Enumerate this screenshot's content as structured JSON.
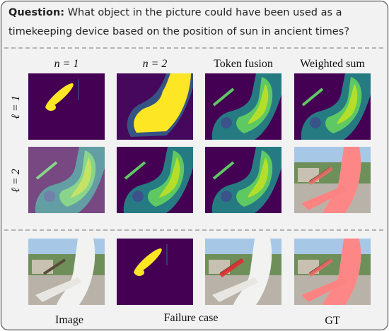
{
  "question": {
    "label": "Question:",
    "text_line1": "What object in the picture could have been used as a",
    "text_line2": "timekeeping device based on the position of sun in ancient times?"
  },
  "columns": [
    "n = 1",
    "n = 2",
    "Token fusion",
    "Weighted sum"
  ],
  "rows": [
    "ℓ = 1",
    "ℓ = 2"
  ],
  "captions": {
    "image": "Image",
    "failure": "Failure case",
    "gt": "GT"
  }
}
